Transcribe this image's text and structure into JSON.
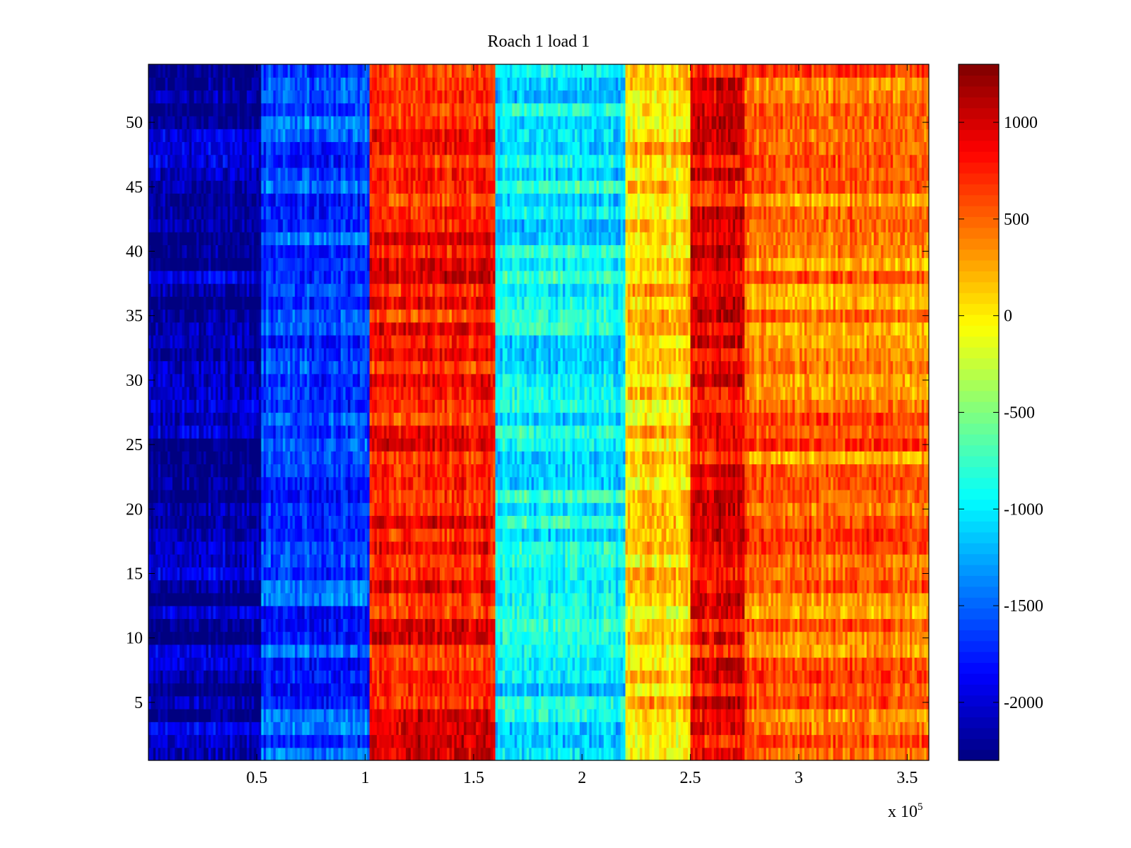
{
  "chart_data": {
    "type": "heatmap",
    "title": "Roach 1 load 1",
    "xlabel": "",
    "ylabel": "",
    "x_exponent_label": "x 10",
    "x_exponent_power": "5",
    "xlim": [
      0,
      3.6
    ],
    "ylim": [
      0.5,
      54.5
    ],
    "xticks": [
      0.5,
      1,
      1.5,
      2,
      2.5,
      3,
      3.5
    ],
    "xtick_labels": [
      "0.5",
      "1",
      "1.5",
      "2",
      "2.5",
      "3",
      "3.5"
    ],
    "yticks": [
      5,
      10,
      15,
      20,
      25,
      30,
      35,
      40,
      45,
      50
    ],
    "ytick_labels": [
      "5",
      "10",
      "15",
      "20",
      "25",
      "30",
      "35",
      "40",
      "45",
      "50"
    ],
    "rows": 54,
    "colormap": "jet",
    "clim": [
      -2300,
      1300
    ],
    "colorbar_ticks": [
      1000,
      500,
      0,
      -500,
      -1000,
      -1500,
      -2000
    ],
    "colorbar_tick_labels": [
      "1000",
      "500",
      "0",
      "-500",
      "-1000",
      "-1500",
      "-2000"
    ],
    "colorbar_location": "right",
    "bands": [
      {
        "x_start": 0.0,
        "x_end": 0.52,
        "mean_value": -2150
      },
      {
        "x_start": 0.52,
        "x_end": 1.02,
        "mean_value": -1650
      },
      {
        "x_start": 1.02,
        "x_end": 1.6,
        "mean_value": 800
      },
      {
        "x_start": 1.6,
        "x_end": 2.2,
        "mean_value": -1000
      },
      {
        "x_start": 2.2,
        "x_end": 2.5,
        "mean_value": 100
      },
      {
        "x_start": 2.5,
        "x_end": 2.75,
        "mean_value": 900
      },
      {
        "x_start": 2.75,
        "x_end": 3.6,
        "mean_value": 450
      }
    ]
  }
}
